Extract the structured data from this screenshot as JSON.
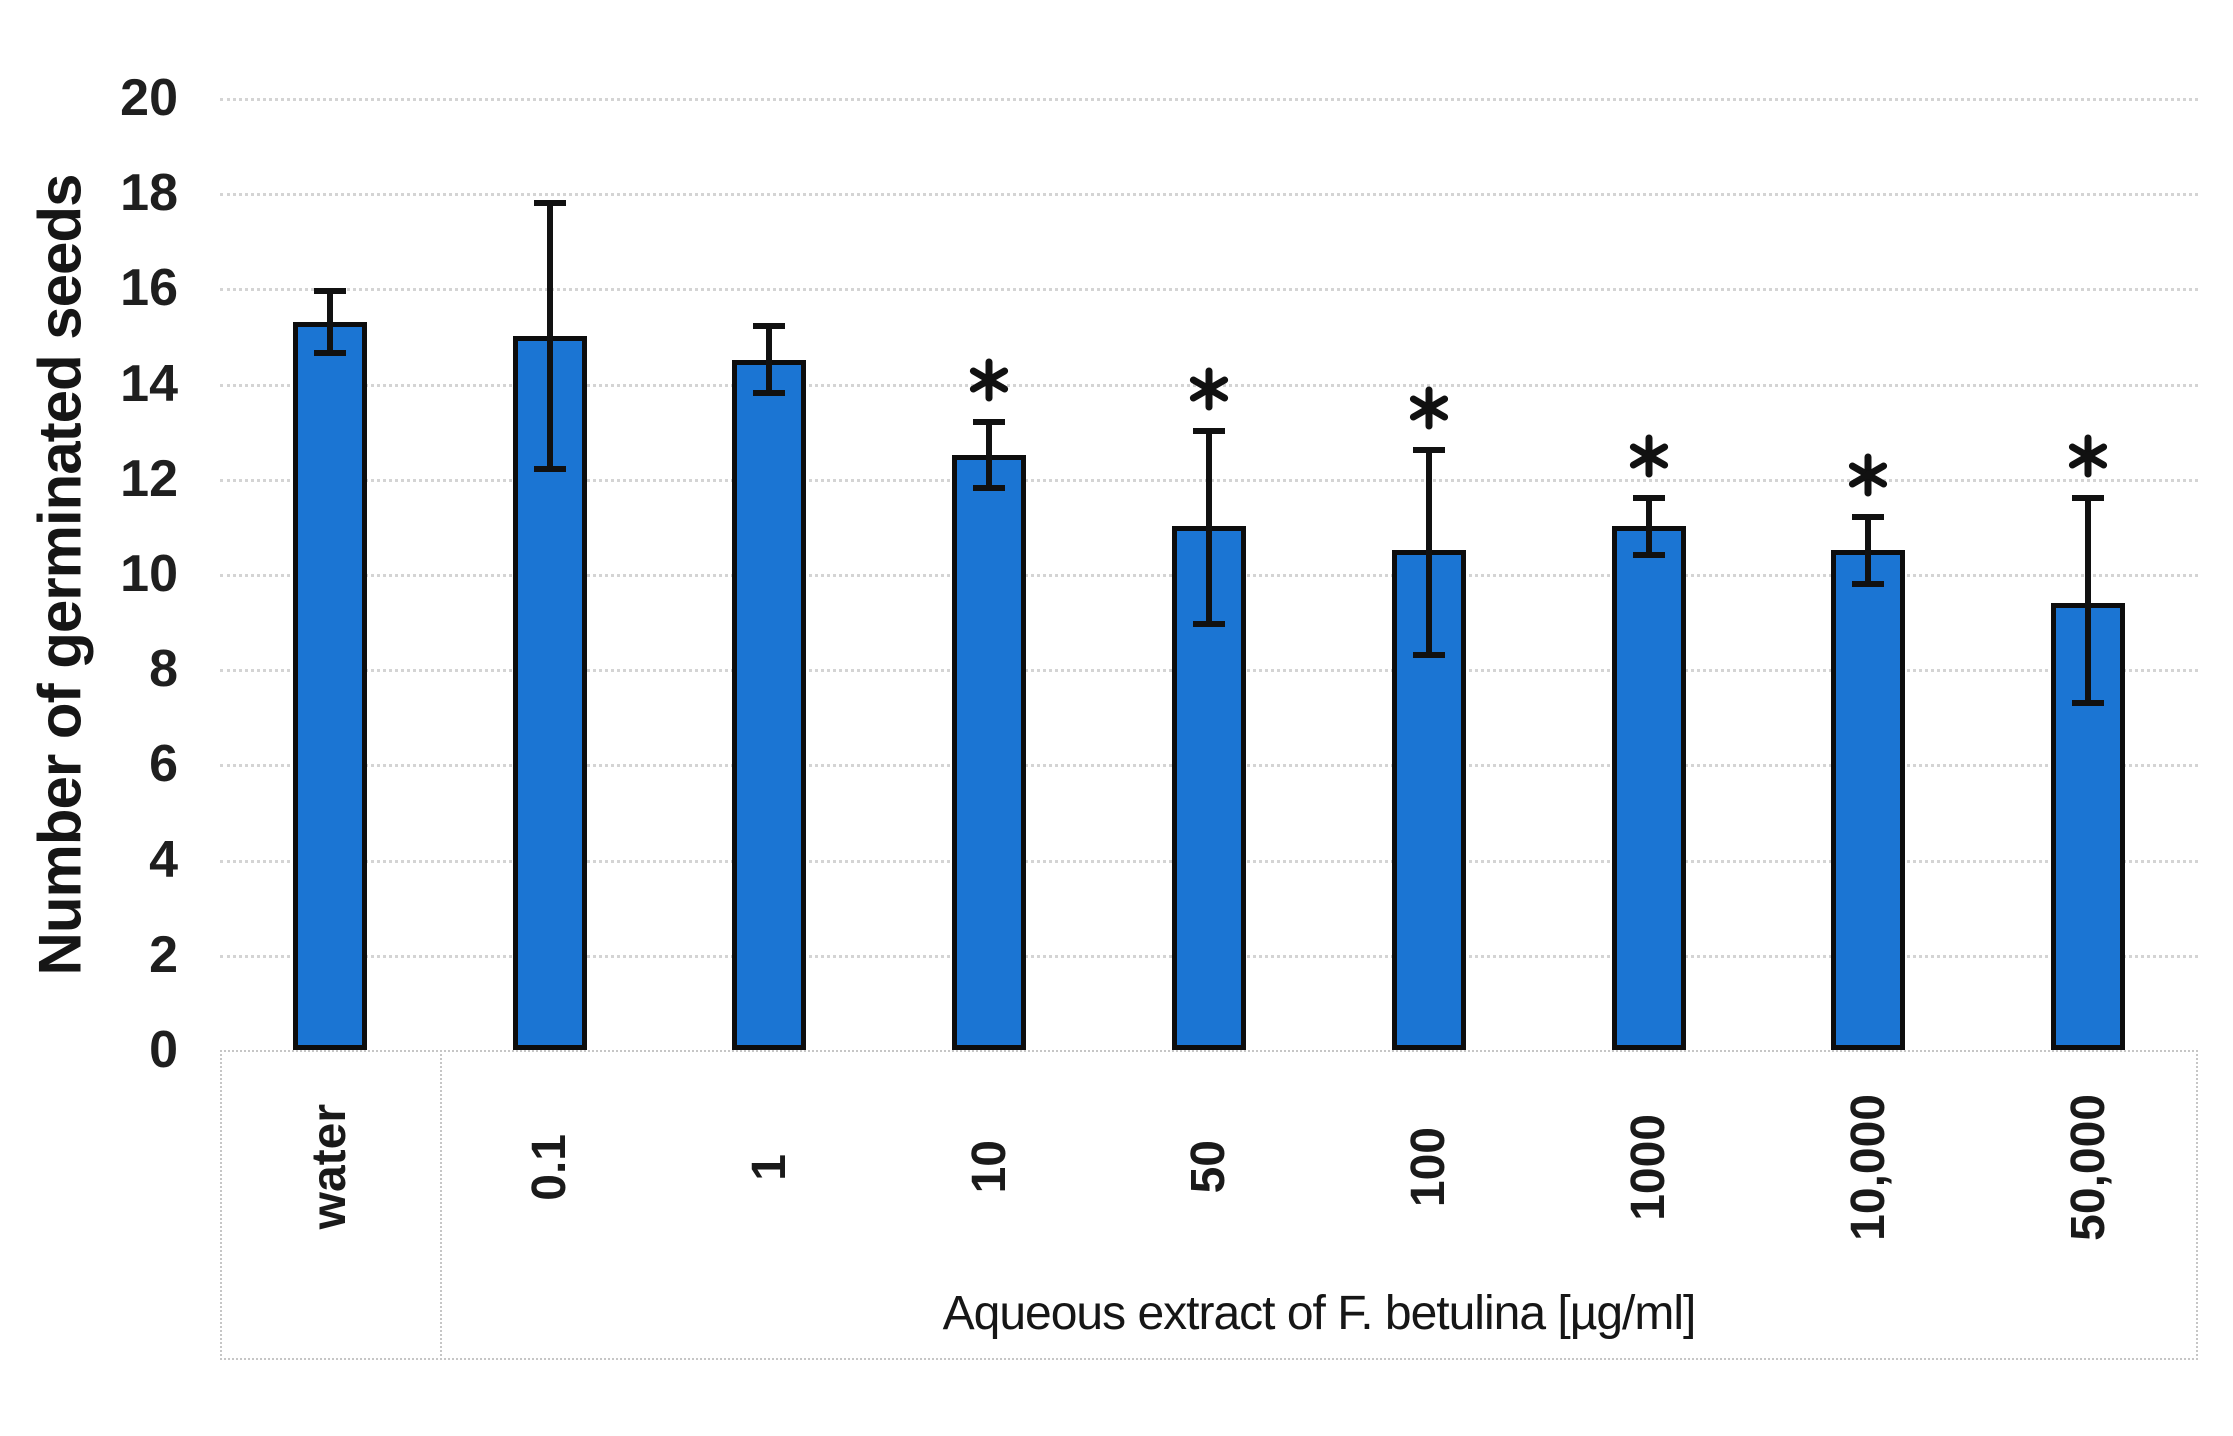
{
  "chart_data": {
    "type": "bar",
    "title": "",
    "ylabel": "Number of germinated seeds",
    "xlabel": "Aqueous extract of F. betulina [µg/ml]",
    "ylim": [
      0,
      20
    ],
    "ytick_step": 2,
    "grid": "horizontal-dotted",
    "legend_position": "none",
    "categories": [
      "water",
      "0.1",
      "1",
      "10",
      "50",
      "100",
      "1000",
      "10,000",
      "50,000"
    ],
    "series": [
      {
        "name": "Number of germinated seeds",
        "values": [
          15.3,
          15.0,
          14.5,
          12.5,
          11.0,
          10.5,
          11.0,
          10.5,
          9.4
        ],
        "error_high": [
          15.95,
          17.8,
          15.2,
          13.2,
          13.0,
          12.6,
          11.6,
          11.2,
          11.6
        ],
        "error_low": [
          14.65,
          12.2,
          13.8,
          11.8,
          8.95,
          8.3,
          10.4,
          9.8,
          7.3
        ],
        "significant": [
          false,
          false,
          false,
          true,
          true,
          true,
          true,
          true,
          true
        ]
      }
    ],
    "significance_marker": "*",
    "control_group_separator_after": "water",
    "colors": {
      "bar_fill": "#1b75d3",
      "bar_border": "#0d0d0d",
      "error_bar": "#111111",
      "gridline": "#d4d4d4",
      "category_box_border": "#c6c6c6",
      "text": "#1a1a1a"
    }
  }
}
